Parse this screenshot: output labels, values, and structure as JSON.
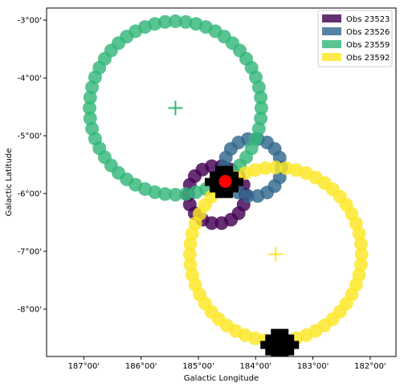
{
  "chart_data": {
    "type": "scatter",
    "xlabel": "Galactic Longitude",
    "ylabel": "Galactic Latitude",
    "xlim": [
      187.65,
      181.55
    ],
    "ylim": [
      -8.82,
      -2.79
    ],
    "x_ticks": [
      {
        "value": 187.0,
        "label": "187°00'"
      },
      {
        "value": 186.0,
        "label": "186°00'"
      },
      {
        "value": 185.0,
        "label": "185°00'"
      },
      {
        "value": 184.0,
        "label": "184°00'"
      },
      {
        "value": 183.0,
        "label": "183°00'"
      },
      {
        "value": 182.0,
        "label": "182°00'"
      }
    ],
    "y_ticks": [
      {
        "value": -3.0,
        "label": "-3°00'"
      },
      {
        "value": -4.0,
        "label": "-4°00'"
      },
      {
        "value": -5.0,
        "label": "-5°00'"
      },
      {
        "value": -6.0,
        "label": "-6°00'"
      },
      {
        "value": -7.0,
        "label": "-7°00'"
      },
      {
        "value": -8.0,
        "label": "-8°00'"
      }
    ],
    "grid": false,
    "legend_position": "top-right",
    "series": [
      {
        "name": "Obs 23523",
        "color": "#440154",
        "center": [
          184.68,
          -6.02
        ],
        "radius_deg": 0.5,
        "points": 18,
        "show_center": false
      },
      {
        "name": "Obs 23526",
        "color": "#31688e",
        "center": [
          184.05,
          -5.55
        ],
        "radius_deg": 0.5,
        "points": 18,
        "show_center": false
      },
      {
        "name": "Obs 23559",
        "color": "#35b779",
        "center": [
          185.4,
          -4.52
        ],
        "radius_deg": 1.5,
        "points": 52,
        "show_center": true
      },
      {
        "name": "Obs 23592",
        "color": "#fde725",
        "center": [
          183.65,
          -7.05
        ],
        "radius_deg": 1.5,
        "points": 52,
        "show_center": true
      }
    ],
    "markers": [
      {
        "kind": "black-patch",
        "center": [
          184.55,
          -5.8
        ]
      },
      {
        "kind": "black-patch",
        "center": [
          183.58,
          -8.62
        ]
      },
      {
        "kind": "red-dot",
        "center": [
          184.53,
          -5.79
        ]
      }
    ]
  }
}
